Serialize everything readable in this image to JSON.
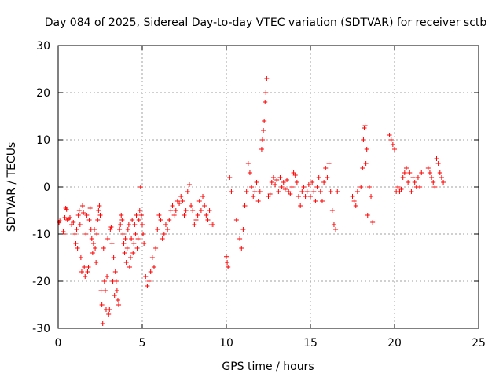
{
  "chart_data": {
    "type": "scatter",
    "title": "Day 084 of 2025, Sidereal Day-to-day VTEC variation (SDTVAR) for receiver sctb",
    "xlabel": "GPS time / hours",
    "ylabel": "SDTVAR / TECUs",
    "xlim": [
      0,
      25
    ],
    "ylim": [
      -30,
      30
    ],
    "x_ticks": [
      0,
      5,
      10,
      15,
      20,
      25
    ],
    "y_ticks": [
      -30,
      -20,
      -10,
      0,
      10,
      20,
      30
    ],
    "x_tick_labels": [
      "0",
      "5",
      "10",
      "15",
      "20",
      "25"
    ],
    "y_tick_labels": [
      "-30",
      "-20",
      "-10",
      "0",
      "10",
      "20",
      "30"
    ],
    "grid": true,
    "marker": "+",
    "color": "#ff0000",
    "series": [
      {
        "name": "SDTVAR",
        "x": [
          0.05,
          0.1,
          0.3,
          0.35,
          0.4,
          0.45,
          0.5,
          0.55,
          0.6,
          0.7,
          0.8,
          0.9,
          1.0,
          1.05,
          1.1,
          1.15,
          1.2,
          1.25,
          1.3,
          1.35,
          1.4,
          1.45,
          1.5,
          1.55,
          1.6,
          1.65,
          1.7,
          1.75,
          1.8,
          1.85,
          1.9,
          1.95,
          2.0,
          2.05,
          2.1,
          2.15,
          2.2,
          2.25,
          2.3,
          2.35,
          2.4,
          2.45,
          2.5,
          2.55,
          2.6,
          2.65,
          2.7,
          2.75,
          2.8,
          2.85,
          2.9,
          2.95,
          3.0,
          3.05,
          3.1,
          3.15,
          3.2,
          3.25,
          3.3,
          3.35,
          3.4,
          3.45,
          3.5,
          3.55,
          3.6,
          3.65,
          3.7,
          3.75,
          3.8,
          3.85,
          3.9,
          3.95,
          4.0,
          4.05,
          4.1,
          4.15,
          4.2,
          4.25,
          4.3,
          4.35,
          4.4,
          4.45,
          4.5,
          4.55,
          4.6,
          4.65,
          4.7,
          4.75,
          4.8,
          4.85,
          4.9,
          4.95,
          5.0,
          5.05,
          5.1,
          5.2,
          5.3,
          5.4,
          5.5,
          5.6,
          5.7,
          5.8,
          5.9,
          6.0,
          6.1,
          6.2,
          6.3,
          6.4,
          6.5,
          6.6,
          6.7,
          6.8,
          6.9,
          7.0,
          7.1,
          7.2,
          7.3,
          7.4,
          7.5,
          7.6,
          7.7,
          7.8,
          7.9,
          8.0,
          8.1,
          8.2,
          8.3,
          8.4,
          8.5,
          8.6,
          8.7,
          8.8,
          8.9,
          9.0,
          9.1,
          9.2,
          10.0,
          10.05,
          10.1,
          10.2,
          10.3,
          10.6,
          10.8,
          10.9,
          11.0,
          11.1,
          11.2,
          11.3,
          11.4,
          11.5,
          11.6,
          11.7,
          11.8,
          11.9,
          12.0,
          12.1,
          12.15,
          12.2,
          12.25,
          12.3,
          12.35,
          12.4,
          12.5,
          12.6,
          12.7,
          12.8,
          12.9,
          13.0,
          13.1,
          13.2,
          13.3,
          13.4,
          13.5,
          13.6,
          13.7,
          13.8,
          13.9,
          14.0,
          14.1,
          14.2,
          14.3,
          14.4,
          14.5,
          14.6,
          14.7,
          14.8,
          14.9,
          15.0,
          15.1,
          15.2,
          15.3,
          15.4,
          15.5,
          15.6,
          15.7,
          15.8,
          15.9,
          16.0,
          16.1,
          16.2,
          16.3,
          16.4,
          16.5,
          16.6,
          17.5,
          17.6,
          17.7,
          17.8,
          18.0,
          18.1,
          18.15,
          18.2,
          18.25,
          18.3,
          18.35,
          18.4,
          18.5,
          18.6,
          18.7,
          19.7,
          19.8,
          19.9,
          20.0,
          20.1,
          20.2,
          20.3,
          20.4,
          20.5,
          20.6,
          20.7,
          20.8,
          20.9,
          21.0,
          21.1,
          21.2,
          21.3,
          21.4,
          21.5,
          21.6,
          22.0,
          22.1,
          22.2,
          22.3,
          22.4,
          22.5,
          22.6,
          22.7,
          22.8,
          22.9
        ],
        "y": [
          -7.5,
          -7.2,
          -9.5,
          -10,
          -6.5,
          -4.5,
          -4.8,
          -7,
          -6.8,
          -6.5,
          -8,
          -7.5,
          -10,
          -12,
          -9,
          -13,
          -6,
          -5,
          -8,
          -15,
          -18,
          -4,
          -5.5,
          -17,
          -19,
          -10,
          -6,
          -18,
          -17,
          -7,
          -4.5,
          -9,
          -11,
          -14,
          -12,
          -9,
          -13,
          -16,
          -10,
          -7,
          -5,
          -4,
          -6,
          -22,
          -25,
          -29,
          -13,
          -20,
          -22,
          -26,
          -19,
          -11,
          -27,
          -26,
          -9,
          -8.5,
          -12,
          -20,
          -15,
          -23,
          -18,
          -20,
          -22,
          -24,
          -25,
          -9,
          -8,
          -6,
          -7,
          -10,
          -12,
          -14,
          -11,
          -16,
          -13,
          -9,
          -8,
          -17,
          -15,
          -11,
          -7,
          -14,
          -12,
          -8,
          -10,
          -6,
          -13,
          -11,
          -7,
          -5,
          0,
          -6,
          -8,
          -10,
          -12,
          -19,
          -21,
          -20,
          -18,
          -15,
          -17,
          -13,
          -9,
          -6,
          -7,
          -11,
          -10,
          -8,
          -9,
          -7,
          -5,
          -4,
          -6,
          -5,
          -3,
          -3.5,
          -2,
          -3,
          -6,
          -5,
          -1,
          0.5,
          -4,
          -5,
          -8,
          -7,
          -6,
          -3,
          -5,
          -2,
          -4,
          -6,
          -7,
          -5,
          -8,
          -8,
          -14.8,
          -16,
          -17,
          2,
          -1,
          -7,
          -11,
          -13,
          -9,
          -4,
          -1,
          5,
          3,
          0,
          -2,
          -1,
          1,
          -3,
          -1,
          8,
          10,
          12,
          14,
          18,
          20,
          23,
          -2,
          -1.5,
          1,
          2,
          0.5,
          1.5,
          -1,
          2,
          0,
          1,
          -0.5,
          1.5,
          -1,
          -1.5,
          0,
          3,
          2.5,
          1,
          -2,
          -4,
          -1,
          0,
          -2,
          -1,
          0.5,
          -2,
          1,
          -1,
          -3,
          0,
          2,
          -1,
          -3,
          1,
          4,
          2,
          5,
          -1,
          -5,
          -8,
          -9,
          -1,
          -2,
          -3,
          -4,
          -1,
          0,
          4,
          10,
          12.5,
          13,
          5,
          8,
          -6,
          0,
          -2,
          -7.5,
          11,
          10,
          9,
          8,
          -1,
          0,
          -1,
          -0.5,
          2,
          3,
          4,
          1,
          3,
          -1,
          2,
          1,
          0,
          2,
          0,
          3,
          4,
          3,
          2,
          1,
          0,
          6,
          5,
          3,
          2,
          1
        ]
      }
    ]
  }
}
